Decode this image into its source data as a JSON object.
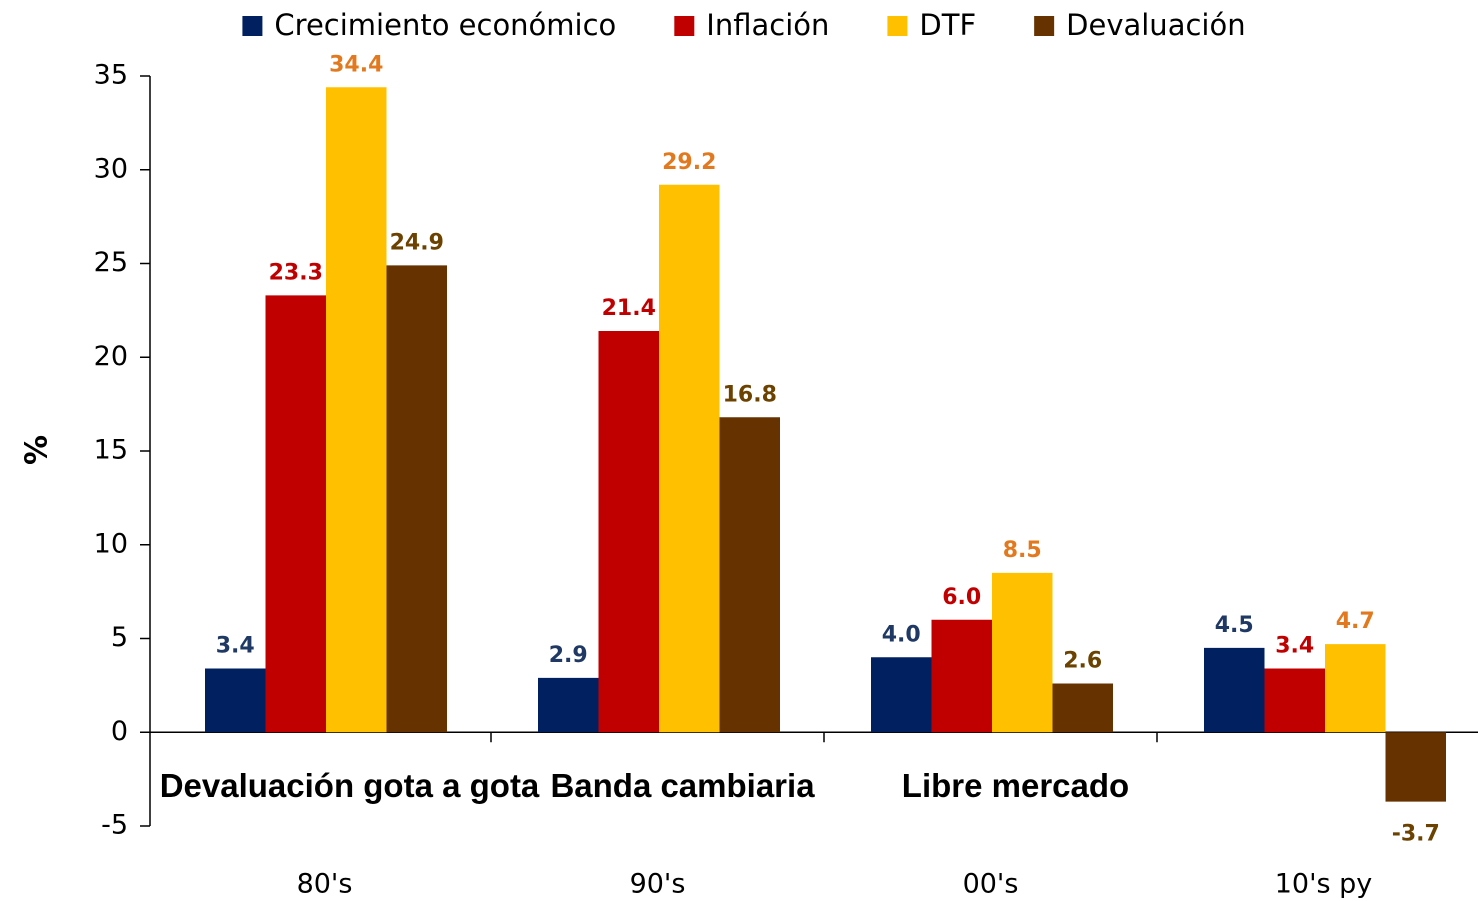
{
  "chart_data": {
    "type": "bar",
    "y_label": "%",
    "categories": [
      "80's",
      "90's",
      "00's",
      "10's  py"
    ],
    "annotations": [
      "Devaluación gota a gota",
      "Banda cambiaria",
      "Libre mercado"
    ],
    "series": [
      {
        "name": "Crecimiento económico",
        "color": "#002060",
        "label_color": "#1f3864",
        "values": [
          3.4,
          2.9,
          4.0,
          4.5
        ],
        "value_labels": [
          "3.4",
          "2.9",
          "4.0",
          "4.5"
        ]
      },
      {
        "name": "Inflación",
        "color": "#c00000",
        "label_color": "#c00000",
        "values": [
          23.3,
          21.4,
          6.0,
          3.4
        ],
        "value_labels": [
          "23.3",
          "21.4",
          "6.0",
          "3.4"
        ]
      },
      {
        "name": "DTF",
        "color": "#ffc000",
        "label_color": "#e3791e",
        "values": [
          34.4,
          29.2,
          8.5,
          4.7
        ],
        "value_labels": [
          "34.4",
          "29.2",
          "8.5",
          "4.7"
        ]
      },
      {
        "name": "Devaluación",
        "color": "#663300",
        "label_color": "#6b4200",
        "values": [
          24.9,
          16.8,
          2.6,
          -3.7
        ],
        "value_labels": [
          "24.9",
          "16.8",
          "2.6",
          "-3.7"
        ]
      }
    ],
    "ylim": [
      -5,
      35
    ],
    "yticks": [
      -5,
      0,
      5,
      10,
      15,
      20,
      25,
      30,
      35
    ],
    "grid": false,
    "legend": "top"
  }
}
